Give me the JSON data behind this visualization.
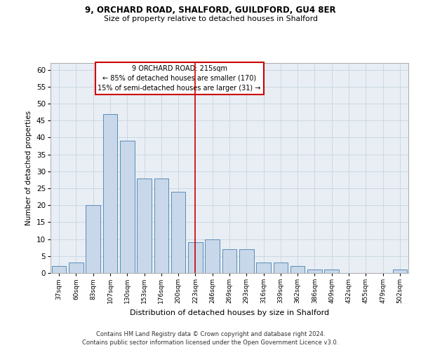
{
  "title1": "9, ORCHARD ROAD, SHALFORD, GUILDFORD, GU4 8ER",
  "title2": "Size of property relative to detached houses in Shalford",
  "xlabel": "Distribution of detached houses by size in Shalford",
  "ylabel": "Number of detached properties",
  "bar_color": "#c8d8ea",
  "bar_edge_color": "#5b8db8",
  "categories": [
    "37sqm",
    "60sqm",
    "83sqm",
    "107sqm",
    "130sqm",
    "153sqm",
    "176sqm",
    "200sqm",
    "223sqm",
    "246sqm",
    "269sqm",
    "293sqm",
    "316sqm",
    "339sqm",
    "362sqm",
    "386sqm",
    "409sqm",
    "432sqm",
    "455sqm",
    "479sqm",
    "502sqm"
  ],
  "values": [
    2,
    3,
    20,
    47,
    39,
    28,
    28,
    24,
    9,
    10,
    7,
    7,
    3,
    3,
    2,
    1,
    1,
    0,
    0,
    0,
    1
  ],
  "vline_x": 8.0,
  "property_label": "9 ORCHARD ROAD: 215sqm",
  "annotation_line1": "← 85% of detached houses are smaller (170)",
  "annotation_line2": "15% of semi-detached houses are larger (31) →",
  "vline_color": "#cc0000",
  "annotation_box_color": "#cc0000",
  "ylim": [
    0,
    62
  ],
  "yticks": [
    0,
    5,
    10,
    15,
    20,
    25,
    30,
    35,
    40,
    45,
    50,
    55,
    60
  ],
  "grid_color": "#cdd8e3",
  "background_color": "#e8eef4",
  "footer1": "Contains HM Land Registry data © Crown copyright and database right 2024.",
  "footer2": "Contains public sector information licensed under the Open Government Licence v3.0."
}
